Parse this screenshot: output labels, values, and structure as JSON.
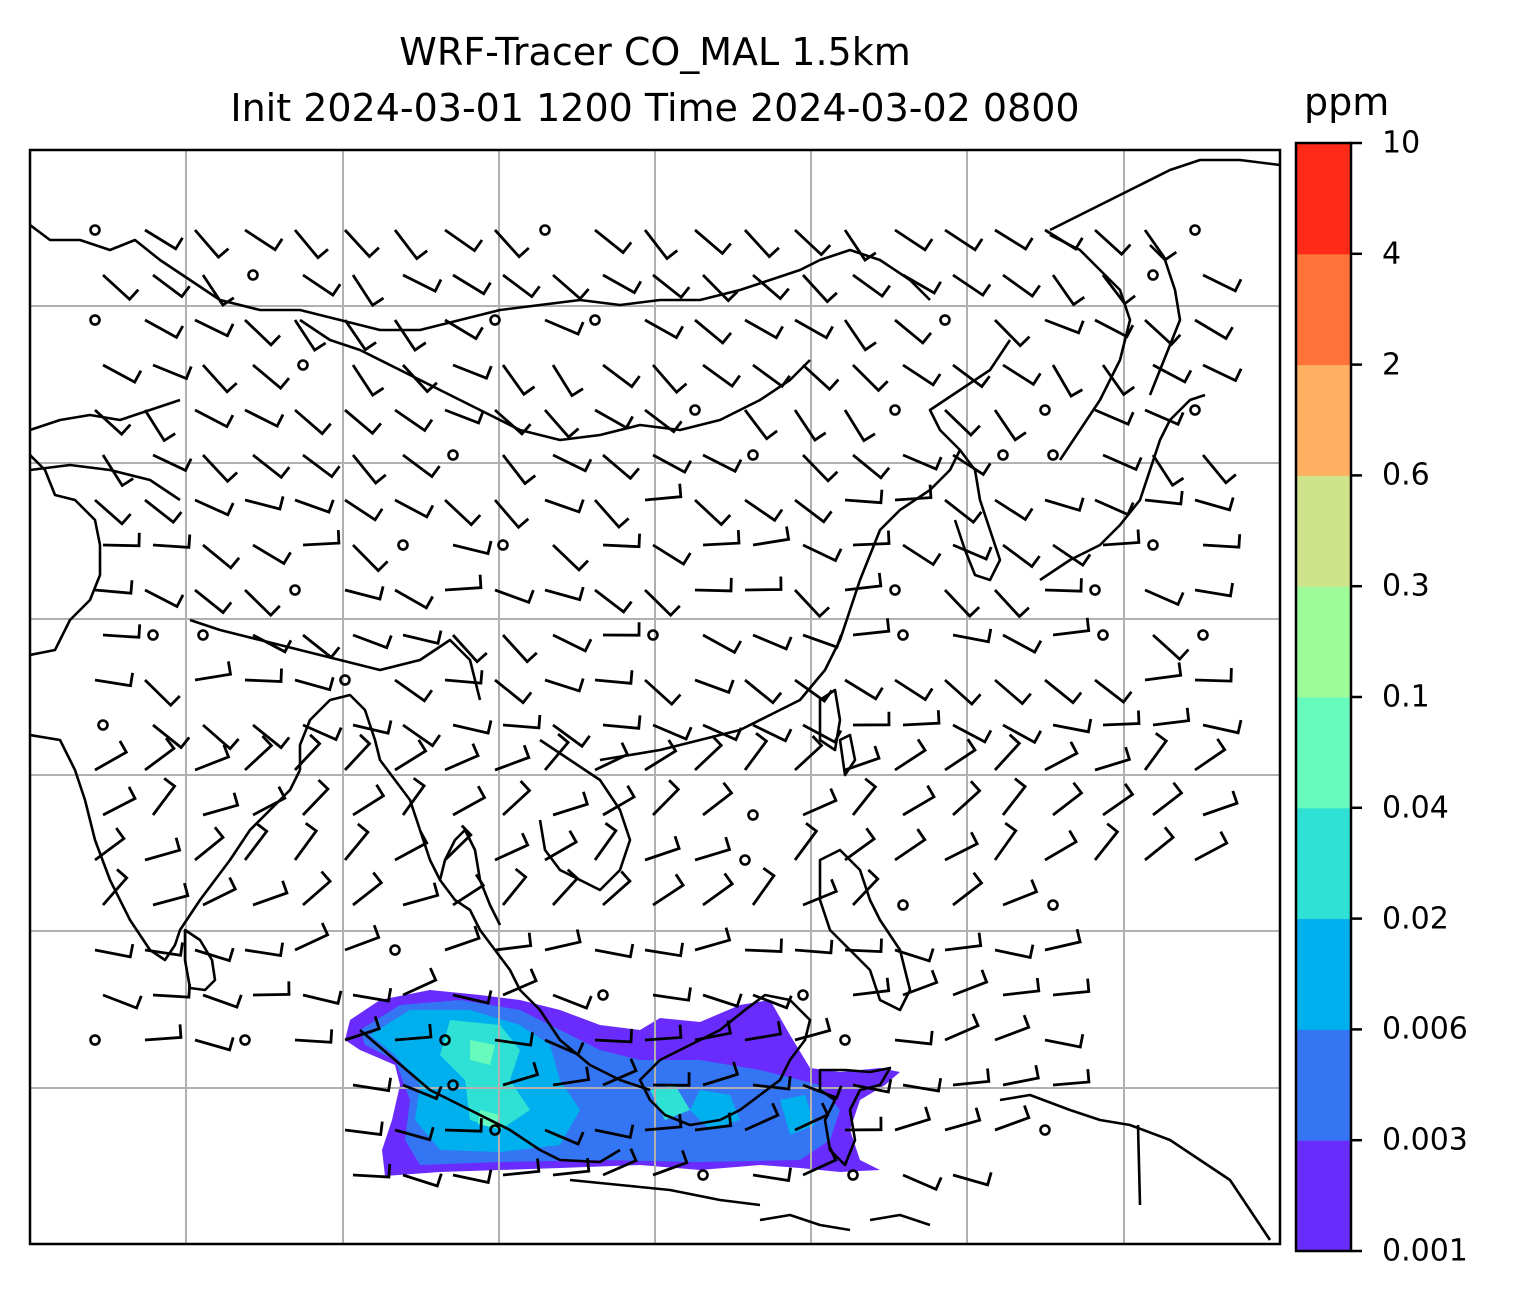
{
  "title_line1": "WRF-Tracer CO_MAL 1.5km",
  "title_line2": "Init 2024-03-01 1200 Time 2024-03-02 0800",
  "colorbar": {
    "unit": "ppm",
    "levels": [
      "0.001",
      "0.003",
      "0.006",
      "0.02",
      "0.04",
      "0.1",
      "0.3",
      "0.6",
      "2",
      "4",
      "10"
    ],
    "colors": [
      "#6a2cfd",
      "#3475f3",
      "#00b0ee",
      "#2fe0d4",
      "#66fbbc",
      "#9dfb9a",
      "#cfe48a",
      "#ffb061",
      "#ff7238",
      "#ff2a17"
    ]
  },
  "map": {
    "frame_color": "#000000",
    "grid_color": "#b0b0b0",
    "coastline_color": "#000000",
    "wind_barb_color": "#000000",
    "gridlines": true
  }
}
